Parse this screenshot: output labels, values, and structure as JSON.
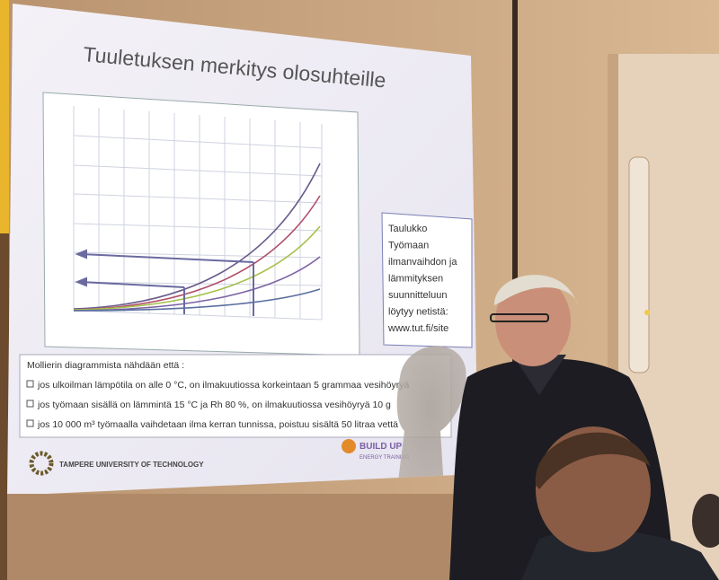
{
  "slide": {
    "title": "Tuuletuksen merkitys olosuhteille",
    "side_note": [
      "Taulukko",
      "Työmaan",
      "ilmanvaihdon ja",
      "lämmityksen",
      "suunnitteluun",
      "löytyy netistä:",
      "www.tut.fi/site"
    ],
    "bullets": {
      "heading": "Mollierin diagrammista nähdään että :",
      "items": [
        "jos ulkoilman lämpötila on alle  0 °C, on ilmakuutiossa  korkeintaan  5 grammaa vesihöyryä",
        "jos työmaan sisällä on lämmintä 15 °C ja Rh 80 %, on ilmakuutiossa vesihöyryä 10 g",
        "jos 10 000 m³ työmaalla vaihdetaan ilma kerran tunnissa, poistuu sisältä 50 litraa vettä"
      ]
    },
    "logos": {
      "university": "TAMPERE UNIVERSITY OF TECHNOLOGY",
      "build_up": "BUILD UP",
      "build_up_sub": "ENERGY TRAINING"
    }
  }
}
